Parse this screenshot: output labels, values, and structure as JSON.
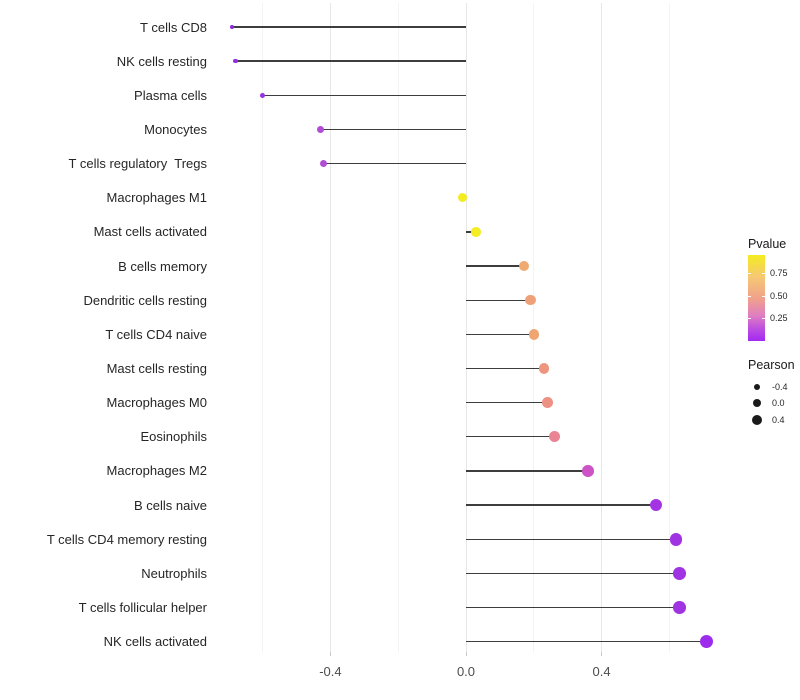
{
  "chart_data": {
    "type": "lollipop",
    "title": "",
    "xlabel": "",
    "ylabel": "",
    "xlim": [
      -0.78,
      0.79
    ],
    "grid": "on",
    "x_major_ticks": [
      {
        "label": "-0.4",
        "value": -0.4
      },
      {
        "label": "0.0",
        "value": 0.0
      },
      {
        "label": "0.4",
        "value": 0.4
      }
    ],
    "x_minor_gridlines": [
      -0.6,
      -0.2,
      0.2,
      0.6
    ],
    "stem_color": "#3d3d3d",
    "rows": [
      {
        "label": "T cells CD8",
        "pearson": -0.69,
        "pvalue_approx": 0.02,
        "color": "#8c2be2",
        "radius": 1.9
      },
      {
        "label": "NK cells resting",
        "pearson": -0.68,
        "pvalue_approx": 0.02,
        "color": "#9130e3",
        "radius": 2.1
      },
      {
        "label": "Plasma cells",
        "pearson": -0.6,
        "pvalue_approx": 0.04,
        "color": "#9434de",
        "radius": 2.7
      },
      {
        "label": "Monocytes",
        "pearson": -0.43,
        "pvalue_approx": 0.13,
        "color": "#b04cd6",
        "radius": 3.6
      },
      {
        "label": "T cells regulatory  Tregs",
        "pearson": -0.42,
        "pvalue_approx": 0.14,
        "color": "#b14ed4",
        "radius": 3.7
      },
      {
        "label": "Macrophages M1",
        "pearson": -0.01,
        "pvalue_approx": 0.92,
        "color": "#f4ec20",
        "radius": 4.7
      },
      {
        "label": "Mast cells activated",
        "pearson": 0.03,
        "pvalue_approx": 0.9,
        "color": "#f4ec24",
        "radius": 4.8
      },
      {
        "label": "B cells memory",
        "pearson": 0.17,
        "pvalue_approx": 0.55,
        "color": "#f0a96f",
        "radius": 5.1
      },
      {
        "label": "Dendritic cells resting",
        "pearson": 0.19,
        "pvalue_approx": 0.52,
        "color": "#f0a077",
        "radius": 5.2
      },
      {
        "label": "T cells CD4 naive",
        "pearson": 0.2,
        "pvalue_approx": 0.54,
        "color": "#f0a471",
        "radius": 5.2
      },
      {
        "label": "Mast cells resting",
        "pearson": 0.23,
        "pvalue_approx": 0.46,
        "color": "#ee9580",
        "radius": 5.4
      },
      {
        "label": "Macrophages M0",
        "pearson": 0.24,
        "pvalue_approx": 0.44,
        "color": "#ed9184",
        "radius": 5.4
      },
      {
        "label": "Eosinophils",
        "pearson": 0.26,
        "pvalue_approx": 0.39,
        "color": "#ea8394",
        "radius": 5.5
      },
      {
        "label": "Macrophages M2",
        "pearson": 0.36,
        "pvalue_approx": 0.22,
        "color": "#cb53c6",
        "radius": 5.8
      },
      {
        "label": "B cells naive",
        "pearson": 0.56,
        "pvalue_approx": 0.07,
        "color": "#a433e4",
        "radius": 6.1
      },
      {
        "label": "T cells CD4 memory resting",
        "pearson": 0.62,
        "pvalue_approx": 0.05,
        "color": "#a033e2",
        "radius": 6.3
      },
      {
        "label": "Neutrophils",
        "pearson": 0.63,
        "pvalue_approx": 0.05,
        "color": "#a033e2",
        "radius": 6.3
      },
      {
        "label": "T cells follicular helper",
        "pearson": 0.63,
        "pvalue_approx": 0.05,
        "color": "#a033e2",
        "radius": 6.3
      },
      {
        "label": "NK cells activated",
        "pearson": 0.71,
        "pvalue_approx": 0.03,
        "color": "#9c2beb",
        "radius": 6.6
      }
    ],
    "legend": {
      "color": {
        "title": "Pvalue",
        "tick_labels": [
          "0.75",
          "0.50",
          "0.25"
        ],
        "tick_values": [
          0.75,
          0.5,
          0.25
        ],
        "gradient_stops": [
          {
            "color": "#f4ec1f",
            "pos": 0
          },
          {
            "color": "#f6c775",
            "pos": 26
          },
          {
            "color": "#f0a28a",
            "pos": 50
          },
          {
            "color": "#e07fc0",
            "pos": 70
          },
          {
            "color": "#be50df",
            "pos": 85
          },
          {
            "color": "#a428f3",
            "pos": 100
          }
        ]
      },
      "size": {
        "title": "Pearson",
        "entries": [
          {
            "label": "-0.4",
            "value": -0.4,
            "radius": 3.2
          },
          {
            "label": "0.0",
            "value": 0.0,
            "radius": 4.2
          },
          {
            "label": "0.4",
            "value": 0.4,
            "radius": 5.0
          }
        ]
      }
    }
  }
}
